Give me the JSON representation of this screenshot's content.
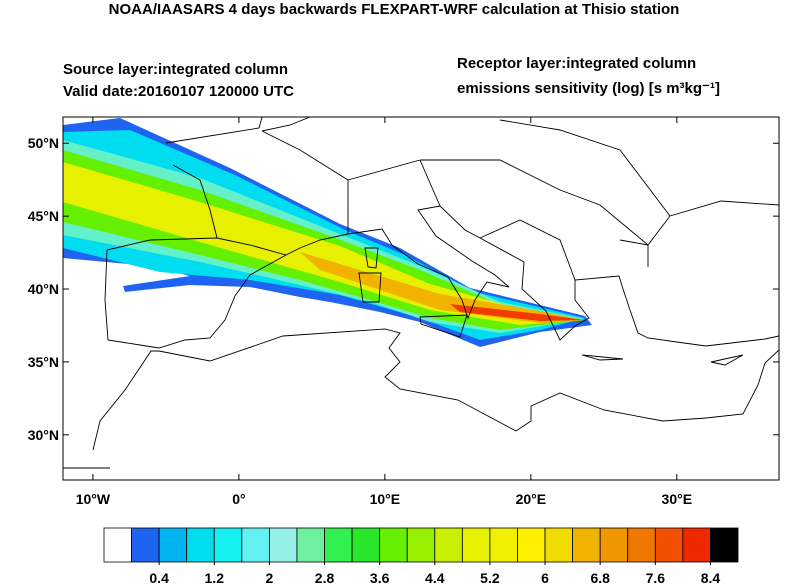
{
  "header": {
    "title": "NOAA/IAASARS 4 days backwards FLEXPART-WRF calculation at Thisio station",
    "source_layer": "Source layer:integrated column",
    "valid_date": "Valid date:20160107 120000 UTC",
    "receptor_layer": "Receptor layer:integrated column",
    "units": "emissions sensitivity (log) [s m³kg⁻¹]"
  },
  "map": {
    "xlim": [
      -12.05,
      37
    ],
    "ylim": [
      26.9,
      51.8
    ],
    "xticks": [
      {
        "value": -10,
        "label": "10°W"
      },
      {
        "value": 0,
        "label": "0°"
      },
      {
        "value": 10,
        "label": "10°E"
      },
      {
        "value": 20,
        "label": "20°E"
      },
      {
        "value": 30,
        "label": "30°E"
      }
    ],
    "yticks": [
      {
        "value": 30,
        "label": "30°N"
      },
      {
        "value": 35,
        "label": "35°N"
      },
      {
        "value": 40,
        "label": "40°N"
      },
      {
        "value": 45,
        "label": "45°N"
      },
      {
        "value": 50,
        "label": "50°N"
      }
    ]
  },
  "colorbar": {
    "range": [
      -0.4,
      8.8
    ],
    "colors": [
      "#ffffff",
      "#1e64f0",
      "#00b4f0",
      "#00dcf0",
      "#14f0f0",
      "#64f0f0",
      "#96f0e6",
      "#6ef0a0",
      "#32f050",
      "#28e628",
      "#64f000",
      "#96f000",
      "#c8f000",
      "#e6f000",
      "#f0f000",
      "#fff000",
      "#f0dc00",
      "#f0b400",
      "#f09600",
      "#f07800",
      "#f05000",
      "#f02800",
      "#000000"
    ],
    "ticks": [
      0.4,
      1.2,
      2,
      2.8,
      3.6,
      4.4,
      5.2,
      6,
      6.8,
      7.6,
      8.4
    ]
  }
}
